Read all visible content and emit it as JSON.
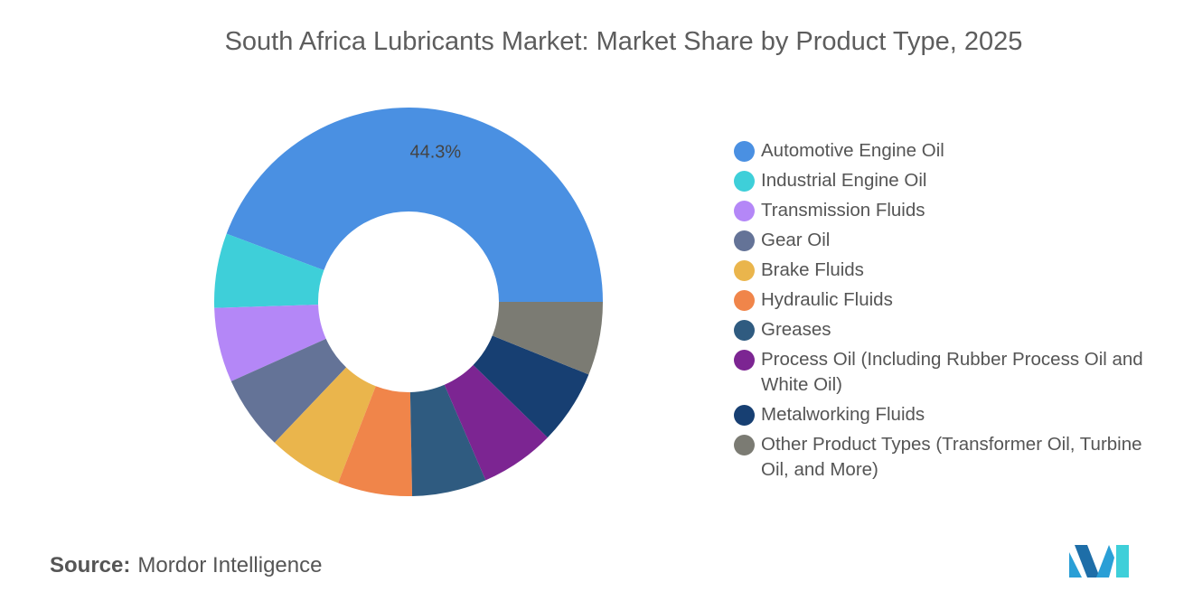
{
  "chart_data": {
    "type": "donut",
    "title": "South Africa Lubricants Market: Market Share by Product Type, 2025",
    "categories": [
      "Automotive Engine Oil",
      "Industrial Engine Oil",
      "Transmission Fluids",
      "Gear Oil",
      "Brake Fluids",
      "Hydraulic Fluids",
      "Greases",
      "Process Oil (Including Rubber Process Oil and White Oil)",
      "Metalworking Fluids",
      "Other Product Types (Transformer Oil, Turbine Oil, and More)"
    ],
    "values": [
      44.3,
      6.2,
      6.2,
      6.2,
      6.2,
      6.2,
      6.2,
      6.2,
      6.2,
      6.1
    ],
    "value_labels": [
      "44.3%",
      null,
      null,
      null,
      null,
      null,
      null,
      null,
      null,
      null
    ],
    "colors": [
      "#4a90e2",
      "#3ecfd9",
      "#b487f7",
      "#647397",
      "#eab54c",
      "#f0854a",
      "#2f5b80",
      "#7c2592",
      "#173f72",
      "#7b7b73"
    ],
    "legend": "right"
  },
  "source_label": "Source:",
  "source": "Mordor Intelligence"
}
